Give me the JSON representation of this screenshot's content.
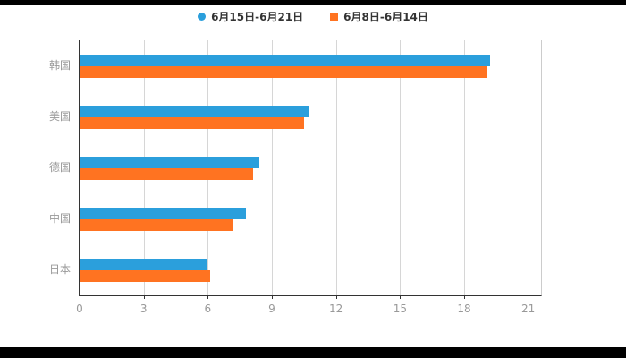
{
  "page": {
    "background": "#000000",
    "panel_background": "#ffffff"
  },
  "legend": {
    "items": [
      {
        "label": "6月15日-6月21日",
        "marker": "circle",
        "color": "#2b9fdc"
      },
      {
        "label": "6月8日-6月14日",
        "marker": "square",
        "color": "#ff7321"
      }
    ]
  },
  "chart_data": {
    "type": "bar",
    "orientation": "horizontal",
    "title": "",
    "xlabel": "",
    "ylabel": "",
    "categories": [
      "韩国",
      "美国",
      "德国",
      "中国",
      "日本"
    ],
    "series": [
      {
        "name": "6月15日-6月21日",
        "color": "#2b9fdc",
        "values": [
          19.2,
          10.7,
          8.4,
          7.8,
          6.0
        ]
      },
      {
        "name": "6月8日-6月14日",
        "color": "#ff7321",
        "values": [
          19.1,
          10.5,
          8.1,
          7.2,
          6.1
        ]
      }
    ],
    "x_ticks": [
      0,
      3,
      6,
      9,
      12,
      15,
      18,
      21
    ],
    "xlim": [
      0,
      21.6
    ],
    "grid": true,
    "legend_position": "top"
  },
  "axis": {
    "tick_color": "#999999",
    "label_color": "#999999",
    "line_color": "#333333",
    "grid_color": "#d6d6d6"
  }
}
